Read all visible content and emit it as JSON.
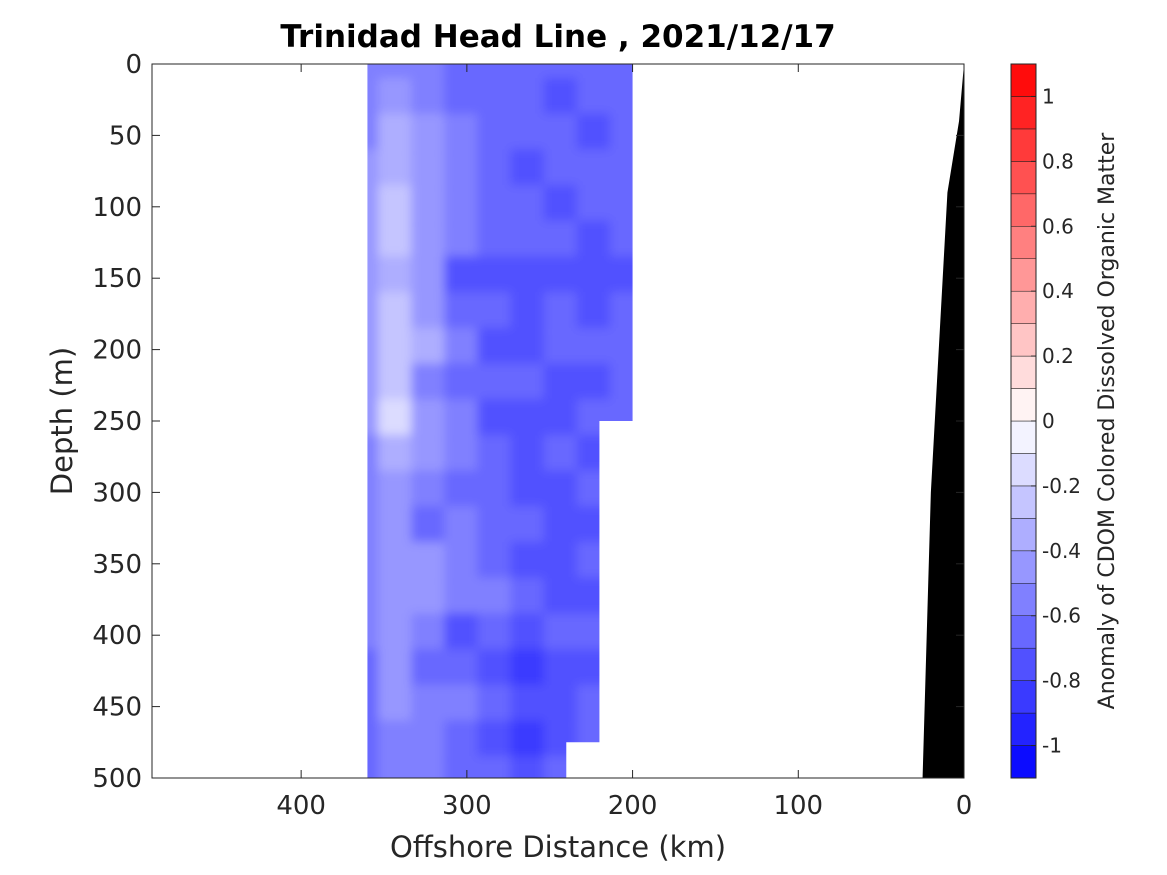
{
  "chart_data": {
    "type": "heatmap",
    "title": "Trinidad Head Line , 2021/12/17",
    "xlabel": "Offshore Distance (km)",
    "ylabel": "Depth (m)",
    "xlim": [
      490,
      0
    ],
    "ylim": [
      500,
      0
    ],
    "x_reversed": true,
    "y_reversed": true,
    "xticks": [
      400,
      300,
      200,
      100,
      0
    ],
    "xtick_labels": [
      "400",
      "300",
      "200",
      "100",
      "0"
    ],
    "yticks": [
      0,
      50,
      100,
      150,
      200,
      250,
      300,
      350,
      400,
      450,
      500
    ],
    "ytick_labels": [
      "0",
      "50",
      "100",
      "150",
      "200",
      "250",
      "300",
      "350",
      "400",
      "450",
      "500"
    ],
    "colorbar": {
      "label": "Anomaly of CDOM Colored Dissolved Organic Matter",
      "range": [
        -1.1,
        1.1
      ],
      "step": 0.1,
      "ticks": [
        1,
        0.8,
        0.6,
        0.4,
        0.2,
        0,
        -0.2,
        -0.4,
        -0.6,
        -0.8,
        -1
      ],
      "tick_labels": [
        "1",
        "0.8",
        "0.6",
        "0.4",
        "0.2",
        "0",
        "-0.2",
        "-0.4",
        "-0.6",
        "-0.8",
        "-1"
      ],
      "low_color": "#0000ff",
      "mid_color": "#ffffff",
      "high_color": "#ff0000"
    },
    "data_extent_km": [
      360,
      200
    ],
    "depth_levels": [
      0,
      25,
      50,
      75,
      100,
      125,
      150,
      175,
      200,
      225,
      250,
      275,
      300,
      325,
      350,
      375,
      400,
      425,
      450,
      475,
      500
    ],
    "profiles": [
      {
        "distance_km": 360,
        "max_depth": 500,
        "values": [
          -0.6,
          -0.6,
          -0.55,
          -0.5,
          -0.45,
          -0.45,
          -0.5,
          -0.5,
          -0.45,
          -0.45,
          -0.5,
          -0.55,
          -0.55,
          -0.55,
          -0.6,
          -0.6,
          -0.6,
          -0.65,
          -0.65,
          -0.65,
          -0.65
        ]
      },
      {
        "distance_km": 340,
        "max_depth": 500,
        "values": [
          -0.55,
          -0.5,
          -0.4,
          -0.35,
          -0.3,
          -0.3,
          -0.35,
          -0.3,
          -0.3,
          -0.3,
          -0.2,
          -0.35,
          -0.45,
          -0.5,
          -0.45,
          -0.5,
          -0.5,
          -0.45,
          -0.5,
          -0.55,
          -0.55
        ]
      },
      {
        "distance_km": 320,
        "max_depth": 500,
        "values": [
          -0.6,
          -0.55,
          -0.5,
          -0.45,
          -0.45,
          -0.45,
          -0.45,
          -0.5,
          -0.4,
          -0.55,
          -0.45,
          -0.5,
          -0.55,
          -0.65,
          -0.5,
          -0.45,
          -0.6,
          -0.7,
          -0.55,
          -0.6,
          -0.6
        ]
      },
      {
        "distance_km": 300,
        "max_depth": 500,
        "values": [
          -0.65,
          -0.65,
          -0.6,
          -0.6,
          -0.55,
          -0.55,
          -0.75,
          -0.65,
          -0.6,
          -0.7,
          -0.6,
          -0.6,
          -0.65,
          -0.6,
          -0.55,
          -0.55,
          -0.75,
          -0.65,
          -0.6,
          -0.7,
          -0.65
        ]
      },
      {
        "distance_km": 280,
        "max_depth": 500,
        "values": [
          -0.65,
          -0.7,
          -0.65,
          -0.65,
          -0.65,
          -0.7,
          -0.8,
          -0.7,
          -0.75,
          -0.7,
          -0.75,
          -0.7,
          -0.7,
          -0.65,
          -0.7,
          -0.6,
          -0.7,
          -0.8,
          -0.7,
          -0.75,
          -0.7
        ]
      },
      {
        "distance_km": 260,
        "max_depth": 500,
        "values": [
          -0.7,
          -0.7,
          -0.7,
          -0.75,
          -0.7,
          -0.7,
          -0.75,
          -0.75,
          -0.8,
          -0.7,
          -0.75,
          -0.8,
          -0.8,
          -0.7,
          -0.8,
          -0.7,
          -0.75,
          -0.85,
          -0.75,
          -0.85,
          -0.75
        ]
      },
      {
        "distance_km": 240,
        "max_depth": 500,
        "values": [
          -0.7,
          -0.75,
          -0.7,
          -0.7,
          -0.75,
          -0.7,
          -0.75,
          -0.7,
          -0.7,
          -0.75,
          -0.8,
          -0.7,
          -0.8,
          -0.75,
          -0.8,
          -0.75,
          -0.7,
          -0.8,
          -0.8,
          -0.75,
          -0.7
        ]
      },
      {
        "distance_km": 220,
        "max_depth": 475,
        "values": [
          -0.65,
          -0.7,
          -0.75,
          -0.7,
          -0.7,
          -0.75,
          -0.8,
          -0.75,
          -0.7,
          -0.75,
          -0.7,
          -0.75,
          -0.7,
          -0.75,
          -0.7,
          -0.75,
          -0.7,
          -0.75,
          -0.7,
          -0.7,
          null
        ]
      },
      {
        "distance_km": 200,
        "max_depth": 250,
        "values": [
          -0.7,
          -0.7,
          -0.7,
          -0.7,
          -0.7,
          -0.7,
          -0.75,
          -0.7,
          -0.7,
          -0.7,
          -0.7,
          null,
          null,
          null,
          null,
          null,
          null,
          null,
          null,
          null,
          null
        ]
      }
    ],
    "bottom_topography": {
      "color": "#000000",
      "x": [
        0,
        3,
        10,
        20,
        25
      ],
      "y": [
        0,
        40,
        90,
        300,
        500
      ]
    }
  }
}
